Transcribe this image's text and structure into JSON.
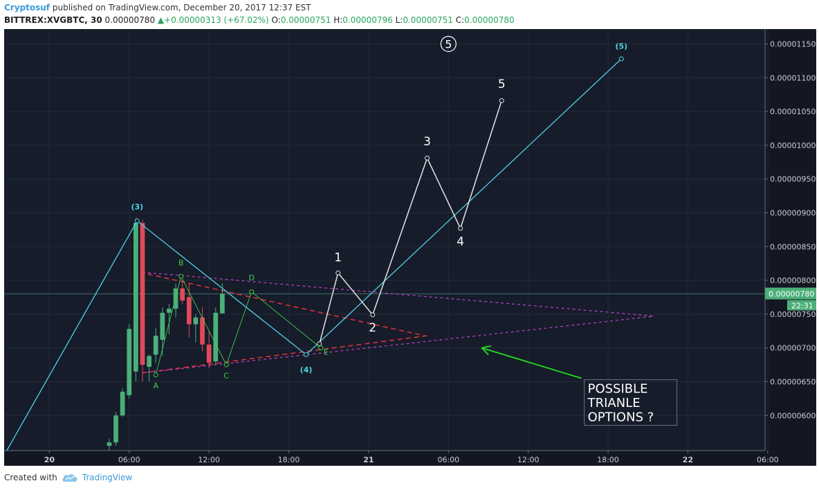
{
  "header": {
    "author": "Cryptosuf",
    "published": "published on TradingView.com, December 20, 2017 12:37 EST",
    "symbol": "BITTREX:XVGBTC, 30",
    "price": "0.00000780",
    "change": "+0.00000313 (+67.02%)",
    "o_label": "O:",
    "o_value": "0.00000751",
    "h_label": "H:",
    "h_value": "0.00000796",
    "l_label": "L:",
    "l_value": "0.00000751",
    "c_label": "C:",
    "c_value": "0.00000780"
  },
  "colors": {
    "background": "#161c2a",
    "up_candle": "#4caf7a",
    "down_candle": "#e04a5a",
    "wave_cyan": "#4fd3e8",
    "projection_white": "#e6e6e6",
    "triangle_red": "#e0303a",
    "triangle_magenta": "#c040c8",
    "abcde_green": "#3cd04a",
    "arrow_green": "#22d022"
  },
  "chart_data": {
    "type": "candlestick",
    "y_axis": {
      "ticks": [
        "0.00001150",
        "0.00001100",
        "0.00001050",
        "0.00001000",
        "0.00000950",
        "0.00000900",
        "0.00000850",
        "0.00000800",
        "0.00000750",
        "0.00000700",
        "0.00000650",
        "0.00000600"
      ],
      "tick_values": [
        1150,
        1100,
        1050,
        1000,
        950,
        900,
        850,
        800,
        750,
        700,
        650,
        600
      ],
      "unit_scale": "1e-8 BTC",
      "range": [
        548,
        1172
      ]
    },
    "x_axis": {
      "labels": [
        "20",
        "06:00",
        "12:00",
        "18:00",
        "21",
        "06:00",
        "12:00",
        "18:00",
        "22",
        "06:00"
      ],
      "label_hours": [
        0,
        6,
        12,
        18,
        24,
        30,
        36,
        42,
        48,
        54
      ],
      "bold": [
        true,
        false,
        false,
        false,
        true,
        false,
        false,
        false,
        true,
        false
      ],
      "range_hours": [
        -3.4,
        53.8
      ]
    },
    "last_price": {
      "label": "0.00000780",
      "countdown": "22:31",
      "value": 780
    },
    "candles": [
      {
        "t": 4.5,
        "o": 555,
        "h": 565,
        "l": 548,
        "c": 560
      },
      {
        "t": 5.0,
        "o": 560,
        "h": 605,
        "l": 555,
        "c": 600
      },
      {
        "t": 5.5,
        "o": 600,
        "h": 640,
        "l": 598,
        "c": 635
      },
      {
        "t": 6.0,
        "o": 630,
        "h": 735,
        "l": 625,
        "c": 728
      },
      {
        "t": 6.5,
        "o": 665,
        "h": 892,
        "l": 650,
        "c": 885
      },
      {
        "t": 7.0,
        "o": 885,
        "h": 890,
        "l": 650,
        "c": 675
      },
      {
        "t": 7.5,
        "o": 672,
        "h": 690,
        "l": 650,
        "c": 688
      },
      {
        "t": 8.0,
        "o": 690,
        "h": 730,
        "l": 678,
        "c": 718
      },
      {
        "t": 8.5,
        "o": 712,
        "h": 760,
        "l": 688,
        "c": 752
      },
      {
        "t": 9.0,
        "o": 752,
        "h": 765,
        "l": 720,
        "c": 758
      },
      {
        "t": 9.5,
        "o": 758,
        "h": 795,
        "l": 745,
        "c": 788
      },
      {
        "t": 10.0,
        "o": 788,
        "h": 800,
        "l": 765,
        "c": 770
      },
      {
        "t": 10.5,
        "o": 775,
        "h": 795,
        "l": 715,
        "c": 735
      },
      {
        "t": 11.0,
        "o": 735,
        "h": 750,
        "l": 708,
        "c": 745
      },
      {
        "t": 11.5,
        "o": 745,
        "h": 760,
        "l": 695,
        "c": 705
      },
      {
        "t": 12.0,
        "o": 705,
        "h": 725,
        "l": 670,
        "c": 678
      },
      {
        "t": 12.5,
        "o": 680,
        "h": 760,
        "l": 675,
        "c": 752
      },
      {
        "t": 13.0,
        "o": 751,
        "h": 796,
        "l": 751,
        "c": 780
      }
    ],
    "wave_count_cyan": {
      "points": [
        {
          "t": -3.2,
          "v": 548
        },
        {
          "t": 6.6,
          "v": 888
        },
        {
          "t": 19.3,
          "v": 690
        },
        {
          "t": 43.0,
          "v": 1128
        }
      ],
      "labels": [
        {
          "text": "(3)",
          "t": 6.6,
          "v": 905
        },
        {
          "text": "(4)",
          "t": 19.3,
          "v": 664
        },
        {
          "text": "(5)",
          "t": 43.0,
          "v": 1143
        }
      ]
    },
    "wave_projection_white": {
      "points": [
        {
          "t": 20.3,
          "v": 706
        },
        {
          "t": 21.7,
          "v": 811
        },
        {
          "t": 24.3,
          "v": 749
        },
        {
          "t": 28.4,
          "v": 981
        },
        {
          "t": 30.9,
          "v": 877
        },
        {
          "t": 34.0,
          "v": 1066
        }
      ],
      "labels": [
        {
          "text": "1",
          "t": 21.7,
          "v": 828
        },
        {
          "text": "2",
          "t": 24.3,
          "v": 724
        },
        {
          "text": "3",
          "t": 28.4,
          "v": 1000
        },
        {
          "text": "4",
          "t": 30.9,
          "v": 852
        },
        {
          "text": "5",
          "t": 34.0,
          "v": 1085
        }
      ]
    },
    "wave_circled_label": {
      "text": "5",
      "t": 30.0,
      "v": 1150
    },
    "abcde": {
      "points": [
        {
          "t": 8.0,
          "v": 660
        },
        {
          "t": 9.9,
          "v": 806
        },
        {
          "t": 13.3,
          "v": 675
        },
        {
          "t": 15.2,
          "v": 783
        },
        {
          "t": 20.4,
          "v": 700
        }
      ],
      "labels": [
        {
          "text": "A",
          "t": 8.0,
          "v": 640
        },
        {
          "text": "B",
          "t": 9.9,
          "v": 822
        },
        {
          "text": "C",
          "t": 13.3,
          "v": 655
        },
        {
          "text": "D",
          "t": 15.2,
          "v": 800
        },
        {
          "text": "E",
          "t": 20.8,
          "v": 690
        }
      ]
    },
    "triangle_red_dashed": [
      {
        "t1": 6.8,
        "v1": 812,
        "t2": 28.2,
        "v2": 718
      },
      {
        "t1": 7.0,
        "v1": 663,
        "t2": 28.4,
        "v2": 718
      }
    ],
    "triangle_magenta_dashed": [
      {
        "t1": 7.0,
        "v1": 812,
        "t2": 45.5,
        "v2": 747
      },
      {
        "t1": 7.0,
        "v1": 663,
        "t2": 45.5,
        "v2": 747
      }
    ],
    "annotation": {
      "text_lines": [
        "POSSIBLE",
        "TRIANLE",
        "OPTIONS ?"
      ],
      "arrow_from": {
        "t": 40.0,
        "v": 655
      },
      "arrow_to": {
        "t": 32.5,
        "v": 700
      }
    }
  },
  "footer": {
    "created_with": "Created with",
    "brand": "TradingView"
  }
}
